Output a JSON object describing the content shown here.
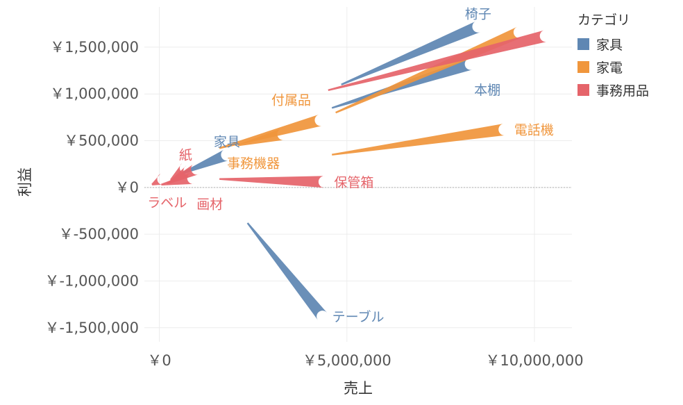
{
  "chart_data": {
    "type": "line",
    "subtitle_note": "",
    "xlabel": "売上",
    "ylabel": "利益",
    "xlim": [
      -400000,
      11000000
    ],
    "ylim": [
      -1650000,
      1930000
    ],
    "x_ticks": [
      {
        "value": 0,
        "label": "￥0"
      },
      {
        "value": 5000000,
        "label": "￥5,000,000"
      },
      {
        "value": 10000000,
        "label": "￥10,000,000"
      }
    ],
    "y_ticks": [
      {
        "value": 1500000,
        "label": "￥1,500,000"
      },
      {
        "value": 1000000,
        "label": "￥1,000,000"
      },
      {
        "value": 500000,
        "label": "￥500,000"
      },
      {
        "value": 0,
        "label": "￥0"
      },
      {
        "value": -500000,
        "label": "￥-500,000"
      },
      {
        "value": -1000000,
        "label": "￥-1,000,000"
      },
      {
        "value": -1500000,
        "label": "￥-1,500,000"
      }
    ],
    "grid": true,
    "legend": {
      "title": "カテゴリ",
      "position": "right",
      "items": [
        {
          "name": "家具",
          "color": "#5f87b3"
        },
        {
          "name": "家電",
          "color": "#f0963c"
        },
        {
          "name": "事務用品",
          "color": "#e5646a"
        }
      ]
    },
    "series": [
      {
        "name": "家具",
        "color": "#5f87b3",
        "items": [
          {
            "label": "椅子",
            "x0": 4850000,
            "y0": 1100000,
            "x1": 8500000,
            "y1": 1720000,
            "label_pos": "above-end"
          },
          {
            "label": "本棚",
            "x0": 4600000,
            "y0": 850000,
            "x1": 8300000,
            "y1": 1320000,
            "label_pos": "below-end"
          },
          {
            "label": "テーブル",
            "x0": 2350000,
            "y0": -380000,
            "x1": 4350000,
            "y1": -1380000,
            "label_pos": "right-end"
          },
          {
            "label": "家具",
            "x0": 600000,
            "y0": 150000,
            "x1": 1800000,
            "y1": 350000,
            "label_pos": "above-end"
          }
        ]
      },
      {
        "name": "家電",
        "color": "#f0963c",
        "items": [
          {
            "label": "",
            "x0": 4700000,
            "y0": 800000,
            "x1": 9600000,
            "y1": 1660000,
            "label_pos": "none"
          },
          {
            "label": "電話機",
            "x0": 4600000,
            "y0": 350000,
            "x1": 9200000,
            "y1": 620000,
            "label_pos": "right-end"
          },
          {
            "label": "付属品",
            "x0": 1600000,
            "y0": 420000,
            "x1": 4300000,
            "y1": 720000,
            "label_pos": "left-upper"
          },
          {
            "label": "事務機器",
            "x0": 2100000,
            "y0": 450000,
            "x1": 3300000,
            "y1": 570000,
            "label_pos": "below-start"
          }
        ]
      },
      {
        "name": "事務用品",
        "color": "#e5646a",
        "items": [
          {
            "label": "",
            "x0": 4500000,
            "y0": 1040000,
            "x1": 10300000,
            "y1": 1620000,
            "label_pos": "none"
          },
          {
            "label": "保管箱",
            "x0": 1600000,
            "y0": 90000,
            "x1": 4400000,
            "y1": 60000,
            "label_pos": "right-end"
          },
          {
            "label": "紙",
            "x0": 300000,
            "y0": 80000,
            "x1": 700000,
            "y1": 210000,
            "label_pos": "above-end"
          },
          {
            "label": "ラベル",
            "x0": -200000,
            "y0": 30000,
            "x1": 100000,
            "y1": 90000,
            "label_pos": "below-start"
          },
          {
            "label": "画材",
            "x0": 50000,
            "y0": 30000,
            "x1": 900000,
            "y1": 100000,
            "label_pos": "below-end"
          },
          {
            "label": "",
            "x0": 200000,
            "y0": 40000,
            "x1": 1000000,
            "y1": 200000,
            "label_pos": "none"
          },
          {
            "label": "",
            "x0": 250000,
            "y0": 50000,
            "x1": 800000,
            "y1": 180000,
            "label_pos": "none"
          }
        ]
      }
    ]
  }
}
